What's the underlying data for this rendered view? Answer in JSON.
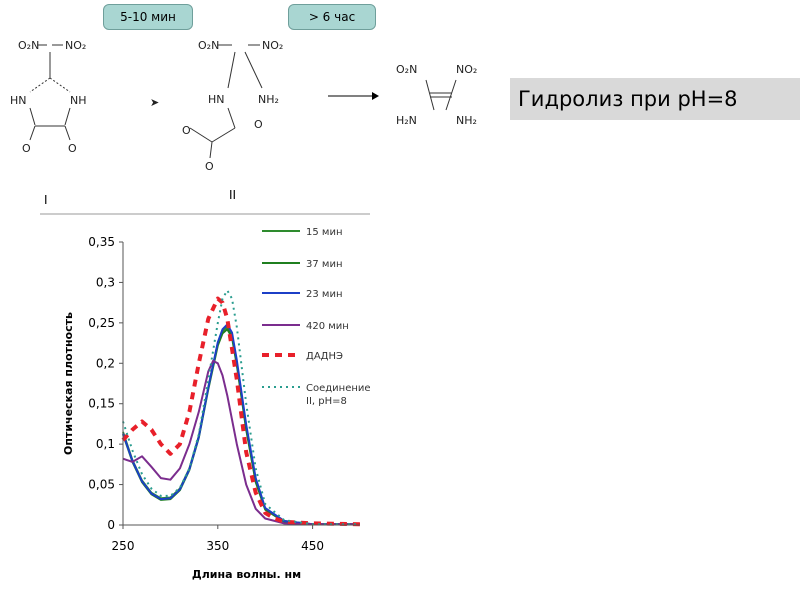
{
  "scheme": {
    "arrow1_time": "5-10 мин",
    "arrow2_time": "> 6 час",
    "compound_I_label": "I",
    "compound_II_label": "II",
    "atoms": {
      "o2n": "O₂N",
      "no2": "NO₂",
      "hn": "HN",
      "nh": "NH",
      "o": "O",
      "nh2": "NH₂",
      "h2n": "H₂N"
    }
  },
  "title": "Гидролиз при pH=8",
  "chart_data": {
    "type": "line",
    "xlabel": "Длина волны. нм",
    "ylabel": "Оптическая плотность",
    "xlim": [
      250,
      500
    ],
    "ylim": [
      0,
      0.35
    ],
    "xticks": [
      "250",
      "350",
      "450"
    ],
    "yticks": [
      "0",
      "0,05",
      "0,1",
      "0,15",
      "0,2",
      "0,25",
      "0,3",
      "0,35"
    ],
    "legend_position": "right",
    "series": [
      {
        "name": "15 мин",
        "color": "#2e8b2e",
        "style": "solid",
        "x": [
          250,
          260,
          270,
          280,
          290,
          300,
          310,
          320,
          330,
          340,
          350,
          355,
          360,
          365,
          370,
          380,
          390,
          400,
          420,
          450,
          500
        ],
        "y": [
          0.115,
          0.08,
          0.055,
          0.04,
          0.033,
          0.034,
          0.045,
          0.07,
          0.11,
          0.17,
          0.225,
          0.24,
          0.245,
          0.235,
          0.2,
          0.12,
          0.055,
          0.02,
          0.005,
          0.001,
          0.001
        ]
      },
      {
        "name": "37 мин",
        "color": "#1f7f1f",
        "style": "solid",
        "x": [
          250,
          260,
          270,
          280,
          290,
          300,
          310,
          320,
          330,
          340,
          350,
          355,
          360,
          365,
          370,
          380,
          390,
          400,
          420,
          450,
          500
        ],
        "y": [
          0.112,
          0.078,
          0.053,
          0.038,
          0.031,
          0.032,
          0.043,
          0.068,
          0.108,
          0.168,
          0.222,
          0.237,
          0.242,
          0.232,
          0.198,
          0.118,
          0.053,
          0.019,
          0.004,
          0.001,
          0.001
        ]
      },
      {
        "name": "23 мин",
        "color": "#1c3fc7",
        "style": "solid",
        "x": [
          250,
          260,
          270,
          280,
          290,
          300,
          310,
          320,
          330,
          340,
          350,
          355,
          360,
          365,
          370,
          380,
          390,
          400,
          420,
          450,
          500
        ],
        "y": [
          0.113,
          0.079,
          0.054,
          0.039,
          0.032,
          0.033,
          0.044,
          0.069,
          0.109,
          0.17,
          0.226,
          0.242,
          0.248,
          0.238,
          0.204,
          0.124,
          0.058,
          0.021,
          0.005,
          0.001,
          0.001
        ]
      },
      {
        "name": "420 мин",
        "color": "#7b2d8e",
        "style": "solid",
        "x": [
          250,
          260,
          270,
          280,
          290,
          300,
          310,
          320,
          330,
          340,
          345,
          350,
          355,
          360,
          370,
          380,
          390,
          400,
          420,
          450,
          500
        ],
        "y": [
          0.082,
          0.078,
          0.085,
          0.072,
          0.058,
          0.056,
          0.07,
          0.1,
          0.14,
          0.19,
          0.203,
          0.2,
          0.185,
          0.16,
          0.1,
          0.05,
          0.02,
          0.008,
          0.002,
          0.001,
          0.001
        ]
      },
      {
        "name": "ДАДНЭ",
        "color": "#e8202a",
        "style": "dash",
        "x": [
          250,
          260,
          270,
          280,
          290,
          300,
          310,
          320,
          330,
          340,
          350,
          355,
          360,
          370,
          380,
          390,
          400,
          410,
          420,
          450,
          500
        ],
        "y": [
          0.105,
          0.118,
          0.128,
          0.118,
          0.1,
          0.088,
          0.1,
          0.14,
          0.2,
          0.255,
          0.28,
          0.275,
          0.255,
          0.18,
          0.09,
          0.04,
          0.015,
          0.008,
          0.004,
          0.002,
          0.001
        ]
      },
      {
        "name": "Соединение II, pH=8",
        "color": "#2a9d8f",
        "style": "dot",
        "x": [
          250,
          260,
          270,
          280,
          290,
          300,
          310,
          320,
          330,
          340,
          350,
          355,
          360,
          365,
          370,
          380,
          390,
          400,
          420,
          450,
          500
        ],
        "y": [
          0.128,
          0.092,
          0.063,
          0.045,
          0.036,
          0.036,
          0.046,
          0.07,
          0.112,
          0.18,
          0.25,
          0.28,
          0.29,
          0.28,
          0.245,
          0.15,
          0.07,
          0.026,
          0.006,
          0.001,
          0.001
        ]
      }
    ]
  }
}
